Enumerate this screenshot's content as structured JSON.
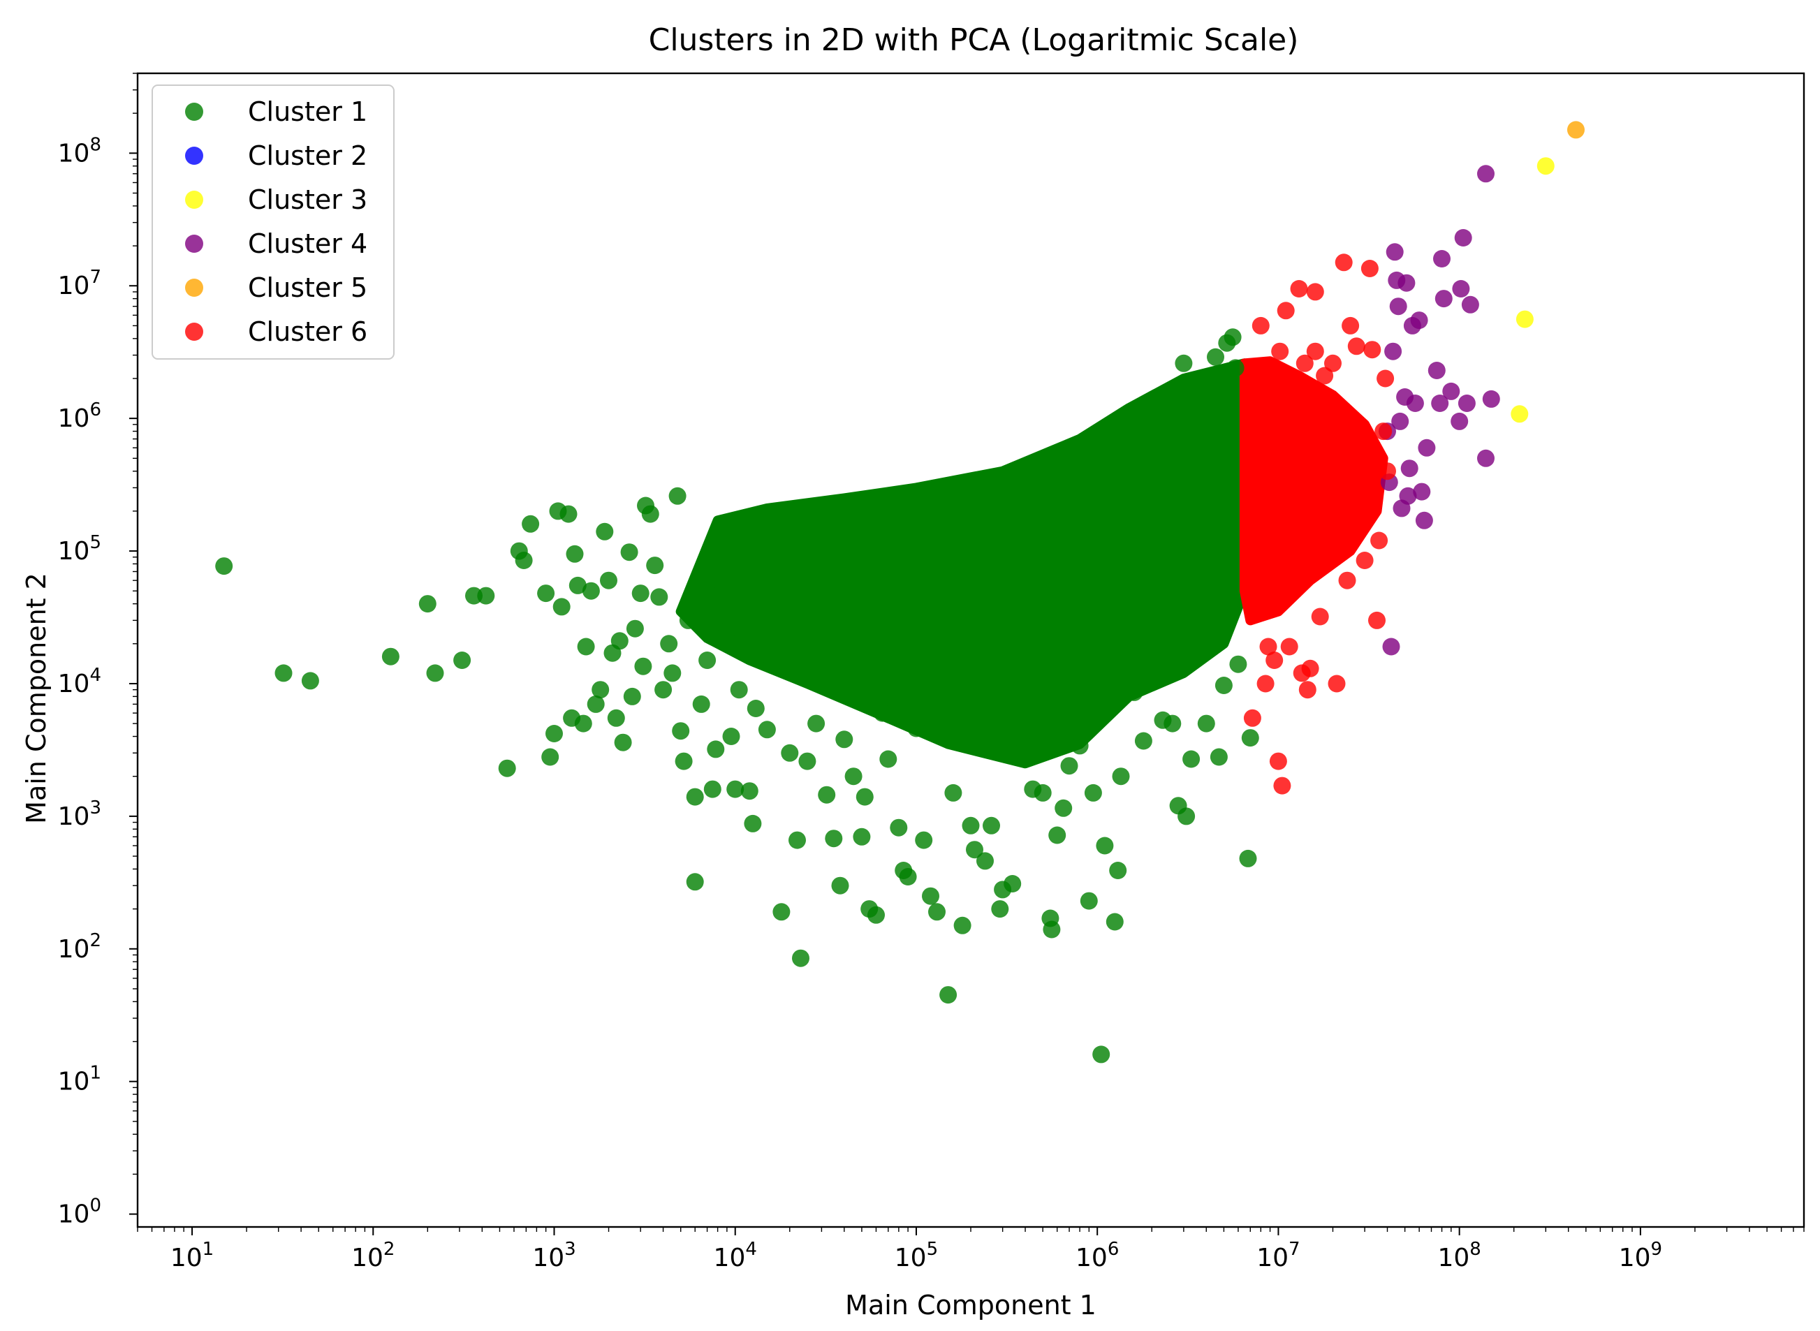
{
  "chart_data": {
    "type": "scatter",
    "title": "Clusters in 2D with PCA (Logaritmic Scale)",
    "xlabel": "Main Component 1",
    "ylabel": "Main Component 2",
    "xscale": "log",
    "yscale": "log",
    "xlim": [
      5,
      8000000000
    ],
    "ylim": [
      0.8,
      400000000
    ],
    "xticks": [
      {
        "base": "10",
        "exp": "1"
      },
      {
        "base": "10",
        "exp": "2"
      },
      {
        "base": "10",
        "exp": "3"
      },
      {
        "base": "10",
        "exp": "4"
      },
      {
        "base": "10",
        "exp": "5"
      },
      {
        "base": "10",
        "exp": "6"
      },
      {
        "base": "10",
        "exp": "7"
      },
      {
        "base": "10",
        "exp": "8"
      },
      {
        "base": "10",
        "exp": "9"
      }
    ],
    "yticks": [
      {
        "base": "10",
        "exp": "0"
      },
      {
        "base": "10",
        "exp": "1"
      },
      {
        "base": "10",
        "exp": "2"
      },
      {
        "base": "10",
        "exp": "3"
      },
      {
        "base": "10",
        "exp": "4"
      },
      {
        "base": "10",
        "exp": "5"
      },
      {
        "base": "10",
        "exp": "6"
      },
      {
        "base": "10",
        "exp": "7"
      },
      {
        "base": "10",
        "exp": "8"
      }
    ],
    "grid": false,
    "legend_position": "top-left",
    "series": [
      {
        "name": "Cluster 1",
        "color": "#008000",
        "points": [
          [
            15,
            77000
          ],
          [
            32,
            12000
          ],
          [
            45,
            10500
          ],
          [
            125,
            16000
          ],
          [
            200,
            40000
          ],
          [
            220,
            12000
          ],
          [
            310,
            15000
          ],
          [
            360,
            46000
          ],
          [
            420,
            46000
          ],
          [
            550,
            2300
          ],
          [
            640,
            100000
          ],
          [
            680,
            85000
          ],
          [
            740,
            160000
          ],
          [
            900,
            48000
          ],
          [
            950,
            2800
          ],
          [
            1000,
            4200
          ],
          [
            1050,
            200000
          ],
          [
            1100,
            38000
          ],
          [
            1200,
            190000
          ],
          [
            1250,
            5500
          ],
          [
            1300,
            95000
          ],
          [
            1350,
            55000
          ],
          [
            1450,
            5000
          ],
          [
            1500,
            19000
          ],
          [
            1600,
            50000
          ],
          [
            1700,
            7000
          ],
          [
            1800,
            9000
          ],
          [
            1900,
            140000
          ],
          [
            2000,
            60000
          ],
          [
            2100,
            17000
          ],
          [
            2200,
            5500
          ],
          [
            2300,
            21000
          ],
          [
            2400,
            3600
          ],
          [
            2600,
            98000
          ],
          [
            2700,
            8000
          ],
          [
            2800,
            26000
          ],
          [
            3000,
            48000
          ],
          [
            3100,
            13500
          ],
          [
            3200,
            220000
          ],
          [
            3400,
            190000
          ],
          [
            3600,
            78000
          ],
          [
            3800,
            45000
          ],
          [
            4000,
            9000
          ],
          [
            4300,
            20000
          ],
          [
            4500,
            12000
          ],
          [
            4800,
            260000
          ],
          [
            5000,
            4400
          ],
          [
            5200,
            2600
          ],
          [
            5500,
            30000
          ],
          [
            6000,
            1400
          ],
          [
            6000,
            320
          ],
          [
            6500,
            7000
          ],
          [
            7000,
            15000
          ],
          [
            7500,
            1600
          ],
          [
            7800,
            3200
          ],
          [
            8200,
            60000
          ],
          [
            9000,
            25000
          ],
          [
            9500,
            4000
          ],
          [
            10000,
            1600
          ],
          [
            10500,
            9000
          ],
          [
            12000,
            1550
          ],
          [
            12500,
            880
          ],
          [
            13000,
            6500
          ],
          [
            15000,
            4500
          ],
          [
            16000,
            14000
          ],
          [
            18000,
            190
          ],
          [
            20000,
            3000
          ],
          [
            22000,
            660
          ],
          [
            23000,
            85
          ],
          [
            25000,
            2600
          ],
          [
            28000,
            5000
          ],
          [
            32000,
            1450
          ],
          [
            35000,
            680
          ],
          [
            38000,
            300
          ],
          [
            40000,
            3800
          ],
          [
            45000,
            2000
          ],
          [
            50000,
            700
          ],
          [
            52000,
            1400
          ],
          [
            55000,
            200
          ],
          [
            60000,
            180
          ],
          [
            65000,
            6000
          ],
          [
            70000,
            2700
          ],
          [
            80000,
            820
          ],
          [
            85000,
            390
          ],
          [
            90000,
            350
          ],
          [
            100000,
            4600
          ],
          [
            110000,
            660
          ],
          [
            120000,
            250
          ],
          [
            130000,
            190
          ],
          [
            150000,
            45
          ],
          [
            160000,
            1500
          ],
          [
            180000,
            150
          ],
          [
            200000,
            850
          ],
          [
            210000,
            560
          ],
          [
            240000,
            460
          ],
          [
            260000,
            850
          ],
          [
            290000,
            200
          ],
          [
            300000,
            280
          ],
          [
            340000,
            310
          ],
          [
            400000,
            3400
          ],
          [
            440000,
            1600
          ],
          [
            500000,
            1500
          ],
          [
            550000,
            170
          ],
          [
            560000,
            140
          ],
          [
            600000,
            720
          ],
          [
            650000,
            1150
          ],
          [
            700000,
            2400
          ],
          [
            800000,
            3400
          ],
          [
            900000,
            230
          ],
          [
            950000,
            1500
          ],
          [
            1050000,
            16
          ],
          [
            1100000,
            600
          ],
          [
            1250000,
            160
          ],
          [
            1300000,
            390
          ],
          [
            1350000,
            2000
          ],
          [
            1600000,
            8600
          ],
          [
            1800000,
            3700
          ],
          [
            2000000,
            10600
          ],
          [
            2300000,
            5300
          ],
          [
            2600000,
            5000
          ],
          [
            2800000,
            1200
          ],
          [
            3100000,
            1000
          ],
          [
            3300000,
            2700
          ],
          [
            4000000,
            5000
          ],
          [
            4700000,
            2800
          ],
          [
            5000000,
            9700
          ],
          [
            5500000,
            34000
          ],
          [
            6000000,
            14000
          ],
          [
            6800000,
            480
          ],
          [
            7000000,
            3900
          ],
          [
            5200000,
            3700000
          ],
          [
            5600000,
            4100000
          ],
          [
            5800000,
            2400000
          ],
          [
            3000000,
            2600000
          ],
          [
            4500000,
            2900000
          ]
        ]
      },
      {
        "name": "Cluster 2",
        "color": "#0000ff",
        "points": []
      },
      {
        "name": "Cluster 3",
        "color": "#ffff00",
        "points": [
          [
            215000000,
            1080000
          ],
          [
            230000000,
            5600000
          ],
          [
            300000000,
            80000000
          ]
        ]
      },
      {
        "name": "Cluster 4",
        "color": "#800080",
        "points": [
          [
            40000000,
            800000
          ],
          [
            41000000,
            330000
          ],
          [
            42000000,
            19000
          ],
          [
            43000000,
            3200000
          ],
          [
            44000000,
            18000000
          ],
          [
            45000000,
            11000000
          ],
          [
            46000000,
            7000000
          ],
          [
            47000000,
            950000
          ],
          [
            48000000,
            210000
          ],
          [
            50000000,
            1450000
          ],
          [
            51000000,
            10500000
          ],
          [
            52000000,
            260000
          ],
          [
            53000000,
            420000
          ],
          [
            55000000,
            5000000
          ],
          [
            57000000,
            1300000
          ],
          [
            60000000,
            5500000
          ],
          [
            62000000,
            280000
          ],
          [
            64000000,
            170000
          ],
          [
            66000000,
            600000
          ],
          [
            75000000,
            2300000
          ],
          [
            78000000,
            1300000
          ],
          [
            80000000,
            16000000
          ],
          [
            82000000,
            8000000
          ],
          [
            90000000,
            1600000
          ],
          [
            100000000,
            950000
          ],
          [
            102000000,
            9500000
          ],
          [
            105000000,
            23000000
          ],
          [
            110000000,
            1300000
          ],
          [
            115000000,
            7200000
          ],
          [
            140000000,
            500000
          ],
          [
            140000000,
            70000000
          ],
          [
            150000000,
            1400000
          ]
        ]
      },
      {
        "name": "Cluster 5",
        "color": "#ffa500",
        "points": [
          [
            440000000,
            150000000
          ]
        ]
      },
      {
        "name": "Cluster 6",
        "color": "#ff0000",
        "points": [
          [
            7200000,
            5500
          ],
          [
            8000000,
            5000000
          ],
          [
            8500000,
            10000
          ],
          [
            8800000,
            19000
          ],
          [
            9500000,
            15000
          ],
          [
            10000000,
            2600
          ],
          [
            10200000,
            3200000
          ],
          [
            10500000,
            1700
          ],
          [
            11000000,
            6500000
          ],
          [
            11500000,
            19000
          ],
          [
            13000000,
            9500000
          ],
          [
            13500000,
            12000
          ],
          [
            14000000,
            2600000
          ],
          [
            14500000,
            9000
          ],
          [
            15000000,
            13000
          ],
          [
            16000000,
            9000000
          ],
          [
            17000000,
            32000
          ],
          [
            18000000,
            250000
          ],
          [
            19000000,
            90000
          ],
          [
            20000000,
            2600000
          ],
          [
            21000000,
            10000
          ],
          [
            23000000,
            15000000
          ],
          [
            24000000,
            60000
          ],
          [
            25000000,
            5000000
          ],
          [
            27000000,
            3500000
          ],
          [
            30000000,
            85000
          ],
          [
            32000000,
            13500000
          ],
          [
            33000000,
            3300000
          ],
          [
            35000000,
            30000
          ],
          [
            36000000,
            120000
          ],
          [
            38000000,
            800000
          ],
          [
            39000000,
            2000000
          ],
          [
            40000000,
            400000
          ],
          [
            16000000,
            3200000
          ],
          [
            18000000,
            2100000
          ]
        ]
      }
    ],
    "dense_regions": [
      {
        "series": "Cluster 1",
        "description_of_shape": "dense filled mass",
        "outline": [
          [
            5000,
            35000
          ],
          [
            8000,
            170000
          ],
          [
            15000,
            210000
          ],
          [
            40000,
            250000
          ],
          [
            100000,
            300000
          ],
          [
            300000,
            400000
          ],
          [
            800000,
            700000
          ],
          [
            1500000,
            1200000
          ],
          [
            3000000,
            2000000
          ],
          [
            6500000,
            2600000
          ],
          [
            6500000,
            50000
          ],
          [
            5000000,
            20000
          ],
          [
            3000000,
            12000
          ],
          [
            1500000,
            8000
          ],
          [
            800000,
            3500
          ],
          [
            400000,
            2500
          ],
          [
            150000,
            3500
          ],
          [
            60000,
            6000
          ],
          [
            25000,
            10000
          ],
          [
            12000,
            15000
          ],
          [
            7000,
            22000
          ]
        ]
      },
      {
        "series": "Cluster 6",
        "description_of_shape": "dense filled mass",
        "outline": [
          [
            6500000,
            2600000
          ],
          [
            9000000,
            2700000
          ],
          [
            13000000,
            2100000
          ],
          [
            20000000,
            1500000
          ],
          [
            30000000,
            900000
          ],
          [
            38000000,
            500000
          ],
          [
            35000000,
            200000
          ],
          [
            25000000,
            100000
          ],
          [
            15000000,
            60000
          ],
          [
            10000000,
            35000
          ],
          [
            7000000,
            30000
          ],
          [
            6500000,
            50000
          ]
        ]
      }
    ]
  }
}
